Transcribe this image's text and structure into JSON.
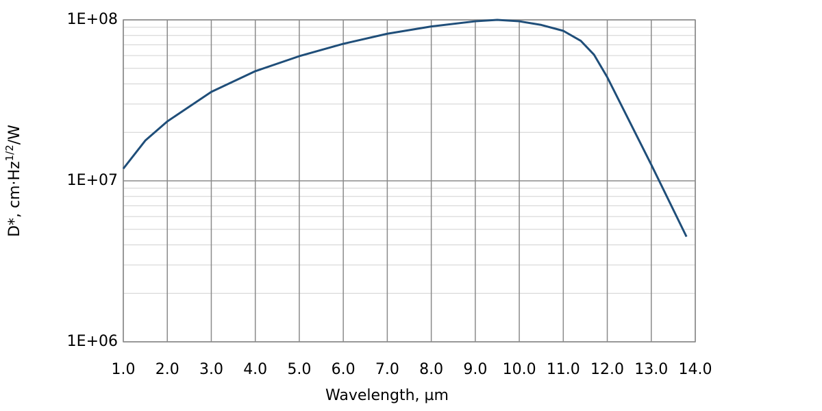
{
  "chart_data": {
    "type": "line",
    "xlabel": "Wavelength, µm",
    "ylabel": {
      "text": "D*, cm·Hz",
      "superscript": "1/2",
      "suffix": "/W"
    },
    "yscale": "log",
    "grid": true,
    "xlim": [
      1,
      14
    ],
    "ylim": [
      1000000,
      100000000
    ],
    "xticks": [
      {
        "value": 1,
        "label": "1.0"
      },
      {
        "value": 2,
        "label": "2.0"
      },
      {
        "value": 3,
        "label": "3.0"
      },
      {
        "value": 4,
        "label": "4.0"
      },
      {
        "value": 5,
        "label": "5.0"
      },
      {
        "value": 6,
        "label": "6.0"
      },
      {
        "value": 7,
        "label": "7.0"
      },
      {
        "value": 8,
        "label": "8.0"
      },
      {
        "value": 9,
        "label": "9.0"
      },
      {
        "value": 10,
        "label": "10.0"
      },
      {
        "value": 11,
        "label": "11.0"
      },
      {
        "value": 12,
        "label": "12.0"
      },
      {
        "value": 13,
        "label": "13.0"
      },
      {
        "value": 14,
        "label": "14.0"
      }
    ],
    "yticks": [
      {
        "value": 1000000,
        "label": "1E+06"
      },
      {
        "value": 10000000,
        "label": "1E+07"
      },
      {
        "value": 100000000,
        "label": "1E+08"
      }
    ],
    "yminorticks": [
      2000000,
      3000000,
      4000000,
      5000000,
      6000000,
      7000000,
      8000000,
      9000000,
      20000000,
      30000000,
      40000000,
      50000000,
      60000000,
      70000000,
      80000000,
      90000000
    ],
    "x": [
      1.0,
      1.5,
      2.0,
      3.0,
      4.0,
      5.0,
      6.0,
      7.0,
      8.0,
      9.0,
      9.5,
      10.0,
      10.5,
      11.0,
      11.4,
      11.7,
      12.0,
      13.0,
      13.8
    ],
    "series": [
      {
        "color": "#1f4e79",
        "values": [
          11900000,
          17800000,
          23400000,
          35700000,
          48000000,
          59500000,
          71000000,
          82000000,
          91000000,
          98000000,
          100000000,
          98000000,
          93000000,
          85500000,
          74000000,
          60700000,
          44000000,
          12600000,
          4500000
        ]
      }
    ]
  }
}
